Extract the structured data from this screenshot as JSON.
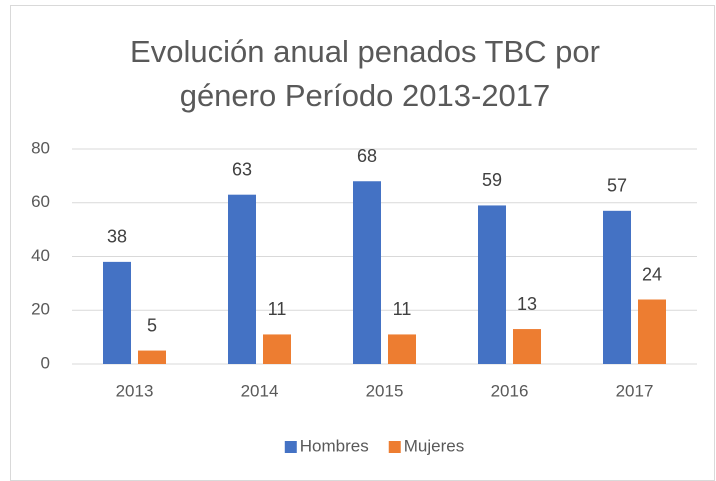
{
  "chart_data": {
    "type": "bar",
    "title": "Evolución anual penados TBC por género Período 2013-2017",
    "categories": [
      "2013",
      "2014",
      "2015",
      "2016",
      "2017"
    ],
    "series": [
      {
        "name": "Hombres",
        "color": "#4472c4",
        "values": [
          38,
          63,
          68,
          59,
          57
        ]
      },
      {
        "name": "Mujeres",
        "color": "#ed7d31",
        "values": [
          5,
          11,
          11,
          13,
          24
        ]
      }
    ],
    "ylim": [
      0,
      80
    ],
    "yticks": [
      0,
      20,
      40,
      60,
      80
    ],
    "grid": true,
    "legend": "bottom"
  }
}
